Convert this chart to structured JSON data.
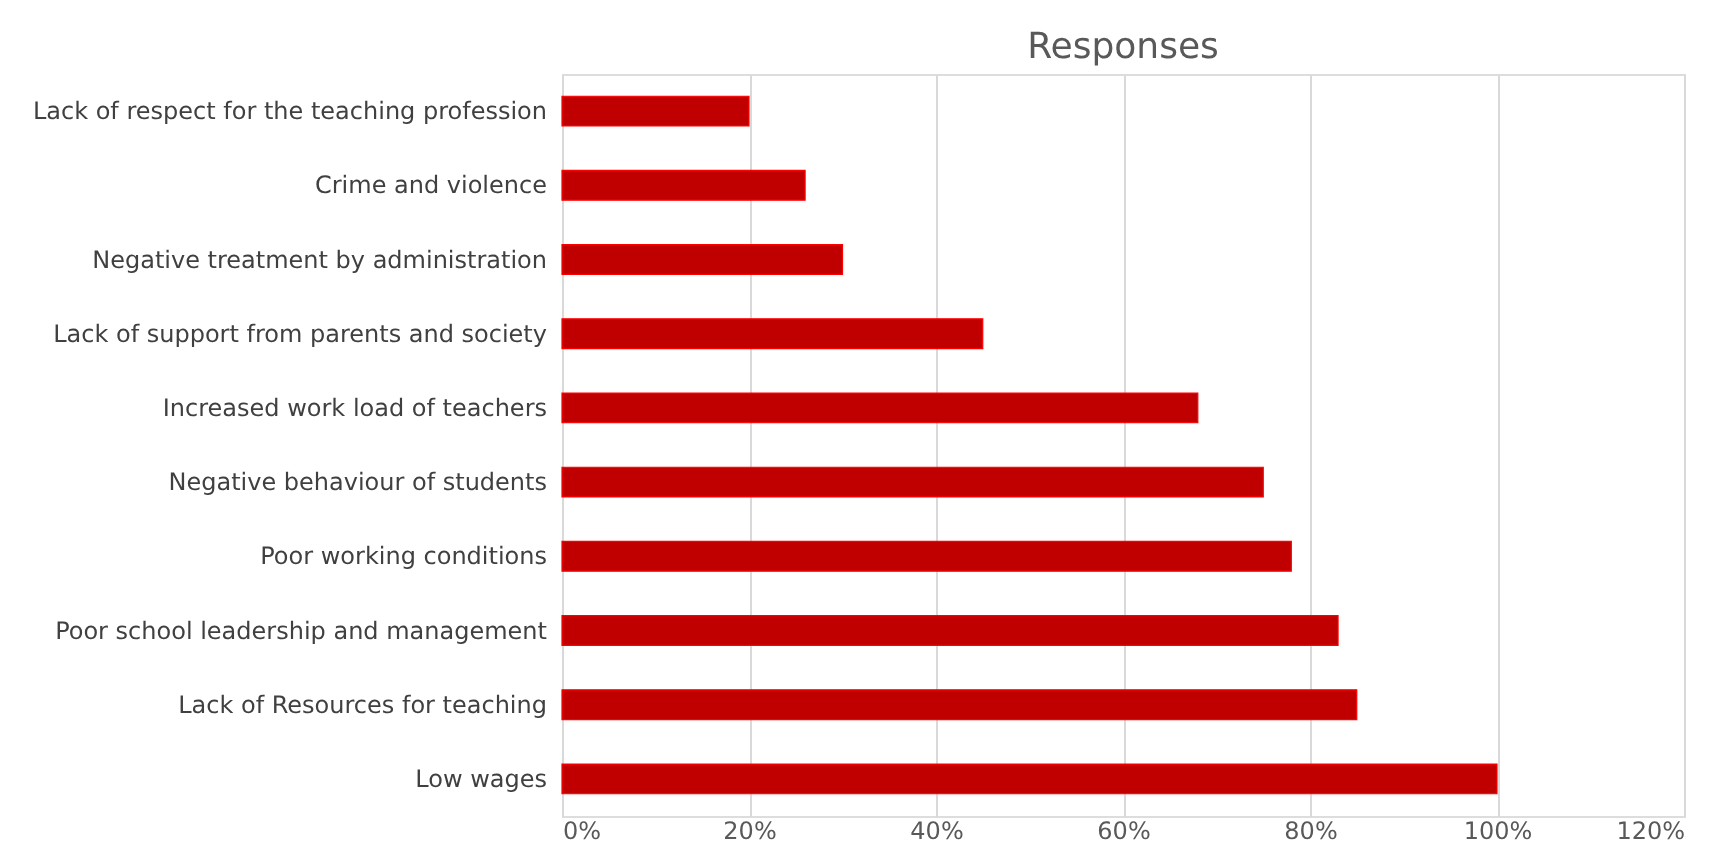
{
  "chart_data": {
    "type": "bar",
    "orientation": "horizontal",
    "title": "Responses",
    "categories": [
      "Lack of respect for the teaching profession",
      "Crime and violence",
      "Negative treatment by administration",
      "Lack of support from parents and society",
      "Increased work load of teachers",
      "Negative behaviour of students",
      "Poor working conditions",
      "Poor school leadership and management",
      "Lack of Resources for teaching",
      "Low wages"
    ],
    "values": [
      20,
      26,
      30,
      45,
      68,
      75,
      78,
      83,
      85,
      100
    ],
    "color": "#c00000",
    "xlim": [
      0,
      120
    ],
    "xticks": [
      {
        "value": 0,
        "label": "0%"
      },
      {
        "value": 20,
        "label": "20%"
      },
      {
        "value": 40,
        "label": "40%"
      },
      {
        "value": 60,
        "label": "60%"
      },
      {
        "value": 80,
        "label": "80%"
      },
      {
        "value": 100,
        "label": "100%"
      },
      {
        "value": 120,
        "label": "120%"
      }
    ],
    "grid": "x"
  }
}
